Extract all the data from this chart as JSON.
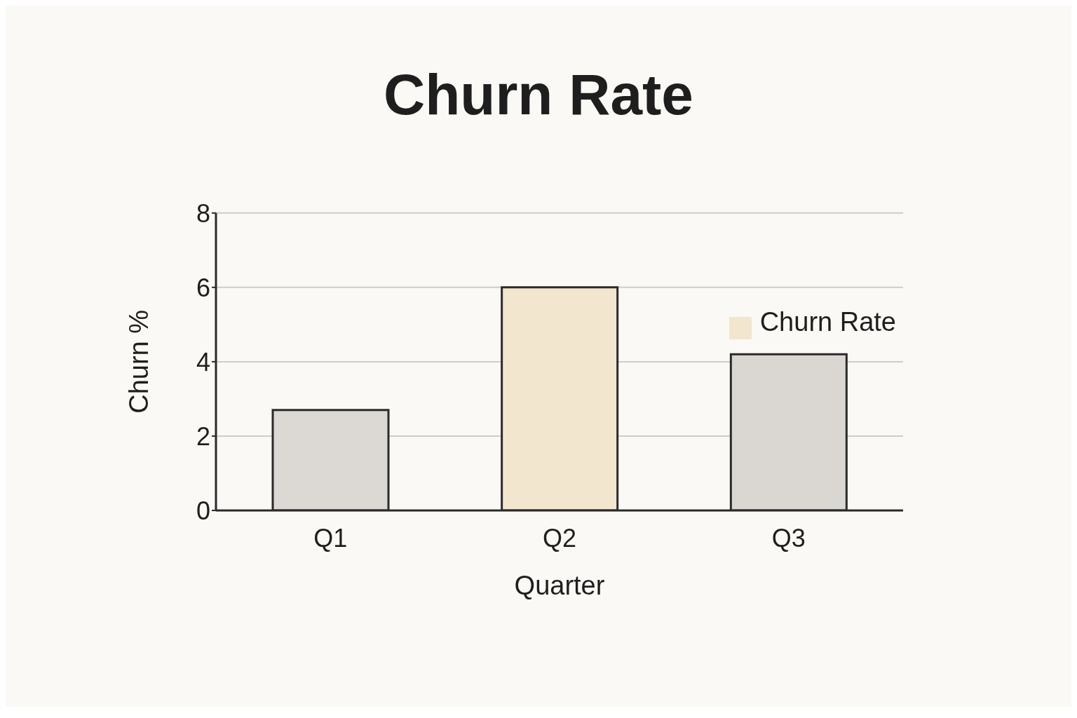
{
  "chart_data": {
    "type": "bar",
    "title": "Churn Rate",
    "xlabel": "Quarter",
    "ylabel": "Churn %",
    "categories": [
      "Q1",
      "Q2",
      "Q3"
    ],
    "series": [
      {
        "name": "Churn Rate",
        "color": "#f2e6cf",
        "colors": [
          "#dcd8d3",
          "#f2e6cf",
          "#dad7d3"
        ],
        "values": [
          2.7,
          6.0,
          4.2
        ]
      }
    ],
    "ylim": [
      0,
      8
    ],
    "yticks": [
      0,
      2,
      4,
      6,
      8
    ],
    "grid": "y",
    "legend": "top right"
  }
}
